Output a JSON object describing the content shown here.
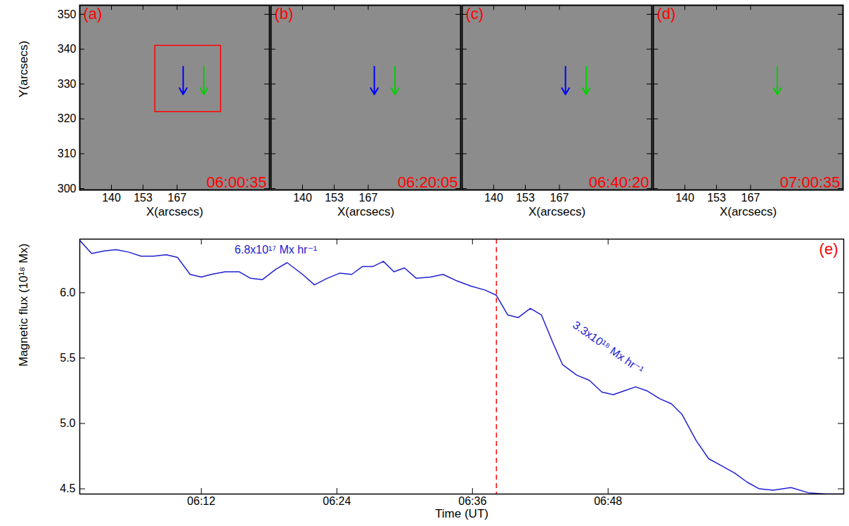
{
  "chart_data": [
    {
      "type": "image",
      "title": "(a)",
      "timestamp": "06:00:35",
      "xlabel": "X(arcsecs)",
      "ylabel": "Y(arcsecs)",
      "xlim": [
        127,
        205
      ],
      "ylim": [
        299.6,
        352.6
      ],
      "xticks": [
        140,
        153,
        167
      ],
      "yticks": [
        300,
        310,
        320,
        330,
        340,
        350
      ],
      "box": {
        "x": [
          158,
          185
        ],
        "y": [
          322,
          341
        ],
        "color": "red"
      },
      "arrows": [
        {
          "x": 169.5,
          "y1": 335,
          "y2": 327,
          "color": "blue"
        },
        {
          "x": 178,
          "y1": 335,
          "y2": 327,
          "color": "#00d000"
        }
      ]
    },
    {
      "type": "image",
      "title": "(b)",
      "timestamp": "06:20:05",
      "xlabel": "X(arcsecs)",
      "tick_labels": "x",
      "xlim": [
        127,
        205
      ],
      "ylim": [
        299.6,
        352.6
      ],
      "xticks": [
        140,
        153,
        167
      ],
      "yticks": [
        300,
        310,
        320,
        330,
        340,
        350
      ],
      "arrows": [
        {
          "x": 169.5,
          "y1": 335,
          "y2": 327,
          "color": "blue"
        },
        {
          "x": 178,
          "y1": 335,
          "y2": 327,
          "color": "#00d000"
        }
      ]
    },
    {
      "type": "image",
      "title": "(c)",
      "timestamp": "06:40:20",
      "xlabel": "X(arcsecs)",
      "tick_labels": "x",
      "xlim": [
        127,
        205
      ],
      "ylim": [
        299.6,
        352.6
      ],
      "xticks": [
        140,
        153,
        167
      ],
      "yticks": [
        300,
        310,
        320,
        330,
        340,
        350
      ],
      "arrows": [
        {
          "x": 169.5,
          "y1": 335,
          "y2": 327,
          "color": "blue"
        },
        {
          "x": 178,
          "y1": 335,
          "y2": 327,
          "color": "#00d000"
        }
      ]
    },
    {
      "type": "image",
      "title": "(d)",
      "timestamp": "07:00:35",
      "xlabel": "X(arcsecs)",
      "tick_labels": "x",
      "xlim": [
        127,
        205
      ],
      "ylim": [
        299.6,
        352.6
      ],
      "xticks": [
        140,
        153,
        167
      ],
      "yticks": [
        300,
        310,
        320,
        330,
        340,
        350
      ],
      "arrows": [
        {
          "x": 178,
          "y1": 335,
          "y2": 327,
          "color": "#00d000"
        }
      ]
    },
    {
      "type": "line",
      "title": "(e)",
      "xlabel": "Time (UT)",
      "ylabel": "Magnetic flux (10¹⁸ Mx)",
      "color": "#2020d0",
      "x": [
        "06:01:15",
        "06:02:18",
        "06:03:26",
        "06:04:29",
        "06:05:36",
        "06:06:40",
        "06:07:47",
        "06:08:54",
        "06:09:54",
        "06:11:01",
        "06:12:00",
        "06:12:53",
        "06:14:07",
        "06:15:22",
        "06:16:22",
        "06:17:25",
        "06:18:36",
        "06:19:36",
        "06:20:58",
        "06:22:01",
        "06:23:08",
        "06:24:16",
        "06:25:19",
        "06:26:15",
        "06:27:11",
        "06:28:07",
        "06:29:03",
        "06:29:59",
        "06:31:02",
        "06:32:17",
        "06:33:24",
        "06:34:38",
        "06:35:53",
        "06:37:08",
        "06:38:07",
        "06:39:07",
        "06:40:03",
        "06:41:07",
        "06:42:06",
        "06:43:06",
        "06:43:58",
        "06:45:13",
        "06:46:20",
        "06:47:27",
        "06:48:27",
        "06:49:26",
        "06:50:26",
        "06:51:26",
        "06:52:33",
        "06:53:36",
        "06:54:32",
        "06:55:47",
        "06:56:54",
        "06:57:58",
        "06:59:12",
        "07:00:19",
        "07:01:23",
        "07:02:37",
        "07:04:11",
        "07:05:44",
        "07:07:17",
        "07:08:51"
      ],
      "values": [
        6.4,
        6.3,
        6.32,
        6.33,
        6.31,
        6.28,
        6.28,
        6.29,
        6.27,
        6.14,
        6.12,
        6.14,
        6.16,
        6.16,
        6.11,
        6.1,
        6.18,
        6.23,
        6.14,
        6.06,
        6.11,
        6.15,
        6.14,
        6.2,
        6.2,
        6.24,
        6.16,
        6.19,
        6.11,
        6.12,
        6.14,
        6.09,
        6.05,
        6.02,
        5.98,
        5.83,
        5.81,
        5.88,
        5.83,
        5.62,
        5.45,
        5.37,
        5.33,
        5.24,
        5.22,
        5.25,
        5.28,
        5.25,
        5.19,
        5.15,
        5.07,
        4.87,
        4.73,
        4.68,
        4.62,
        4.55,
        4.5,
        4.49,
        4.51,
        4.47,
        4.46,
        4.46
      ],
      "xlim": [
        "06:01:15",
        "07:08:51"
      ],
      "xticks": [
        "06:12",
        "06:24",
        "06:36",
        "06:48"
      ],
      "ylim": [
        4.46,
        6.41
      ],
      "yticks": [
        4.5,
        {
          "value": 5,
          "label": "5.0"
        },
        5.5,
        {
          "value": 6,
          "label": "6.0"
        }
      ],
      "vline": {
        "x": "06:38:07",
        "color": "red",
        "line_style": "dashed"
      },
      "annotations": [
        {
          "text": "6.8x10¹⁷ Mx hr⁻¹",
          "x": "06:18:36",
          "y": 6.33,
          "color": "#2020d0"
        },
        {
          "text": "3.3x10¹⁸ Mx hr⁻¹",
          "x": "06:48:00",
          "y": 5.58,
          "color": "#2020d0"
        }
      ]
    }
  ]
}
